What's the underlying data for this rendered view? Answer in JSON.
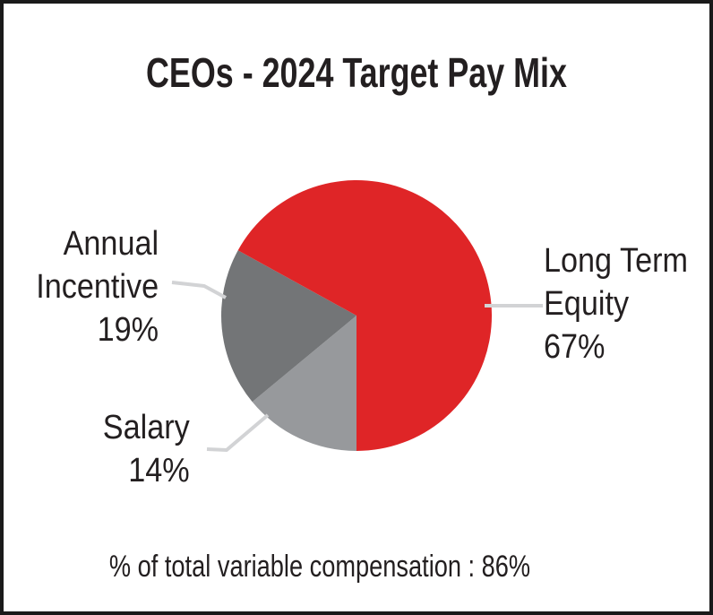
{
  "title": "CEOs - 2024 Target Pay Mix",
  "caption": "% of total variable compensation : 86%",
  "chart_data": {
    "type": "pie",
    "title": "CEOs - 2024 Target Pay Mix",
    "start_angle_deg": 90,
    "direction": "clockwise",
    "legend_position": "outside-callouts",
    "slices": [
      {
        "label": "Salary",
        "value": 14,
        "color": "#97999c",
        "label_lines": [
          "Salary",
          "14%"
        ]
      },
      {
        "label": "Annual Incentive",
        "value": 19,
        "color": "#737577",
        "label_lines": [
          "Annual",
          "Incentive",
          "19%"
        ]
      },
      {
        "label": "Long Term Equity",
        "value": 67,
        "color": "#df2527",
        "label_lines": [
          "Long Term",
          "Equity",
          "67%"
        ]
      }
    ],
    "footnote": "% of total variable compensation : 86%",
    "footnote_value_pct": 86
  },
  "colors": {
    "accent_red": "#df2527",
    "dark_gray": "#737577",
    "light_gray": "#97999c",
    "leader_line": "#d2d3d5",
    "text": "#231f20",
    "frame_border": "#1a1a1a"
  }
}
